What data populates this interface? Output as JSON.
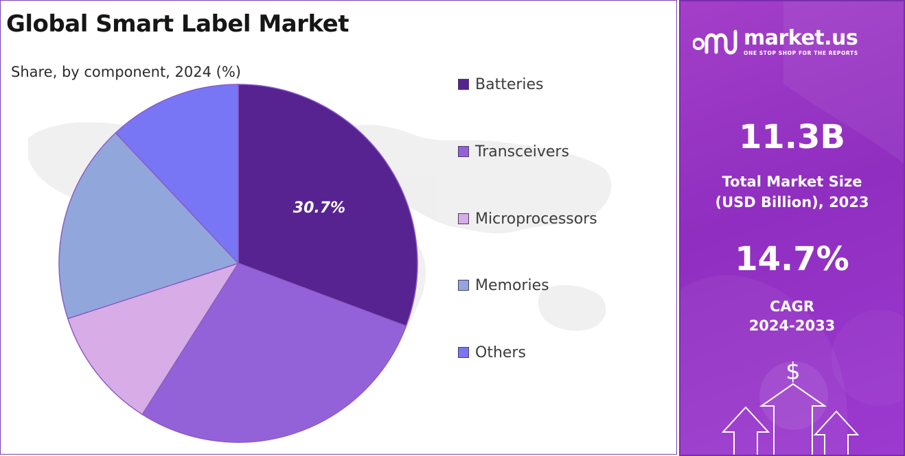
{
  "header": {
    "title": "Global Smart Label Market",
    "subtitle": "Share, by component, 2024 (%)"
  },
  "chart_data": {
    "type": "pie",
    "title": "Global Smart Label Market",
    "subtitle": "Share, by component, 2024 (%)",
    "categories": [
      "Batteries",
      "Transceivers",
      "Microprocessors",
      "Memories",
      "Others"
    ],
    "values": [
      30.7,
      28.3,
      11.0,
      18.0,
      12.0
    ],
    "data_labels": [
      "30.7%",
      "",
      "",
      "",
      ""
    ],
    "colors": [
      "#562391",
      "#9462d8",
      "#d8ace6",
      "#91a7db",
      "#7876f5"
    ],
    "legend_position": "right",
    "start_angle_deg": 0,
    "direction": "clockwise"
  },
  "side_panel": {
    "brand_name": "market.us",
    "brand_tagline": "ONE STOP SHOP FOR THE REPORTS",
    "market_size_value": "11.3B",
    "market_size_label_line1": "Total Market Size",
    "market_size_label_line2": "(USD Billion), 2023",
    "cagr_value": "14.7%",
    "cagr_label_line1": "CAGR",
    "cagr_label_line2": "2024-2033",
    "currency_symbol": "$",
    "icons": [
      "market-us-logo-icon",
      "dollar-icon",
      "up-arrow-icon"
    ]
  }
}
